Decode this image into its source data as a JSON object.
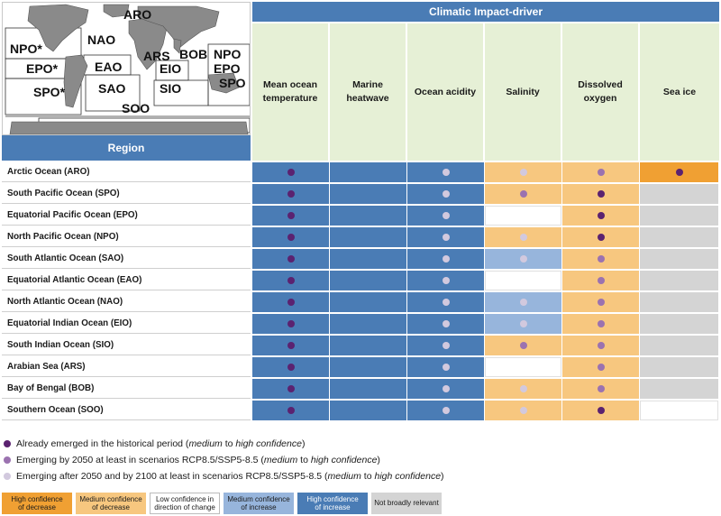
{
  "header": {
    "region_label": "Region",
    "cid_title": "Climatic Impact-driver",
    "columns": [
      "Mean ocean temperature",
      "Marine heatwave",
      "Ocean acidity",
      "Salinity",
      "Dissolved oxygen",
      "Sea ice"
    ]
  },
  "map": {
    "labels": [
      "ARO",
      "NPO*",
      "NAO",
      "EPO*",
      "EAO",
      "ARS",
      "BOB",
      "EIO",
      "NPO",
      "EPO",
      "SPO*",
      "SAO",
      "SIO",
      "SPO",
      "SOO"
    ]
  },
  "colors": {
    "high_decrease": "#f0a033",
    "medium_decrease": "#f7c77f",
    "low_confidence": "#ffffff",
    "medium_increase": "#97b5dc",
    "high_increase": "#4a7cb5",
    "not_relevant": "#d4d4d4",
    "dot_historical": "#5b2270",
    "dot_2050": "#9b72b0",
    "dot_2100": "#d2c9de"
  },
  "rows": [
    {
      "label": "Arctic Ocean (ARO)",
      "cells": [
        [
          "HI",
          "H"
        ],
        [
          "HI",
          ""
        ],
        [
          "HI",
          "L"
        ],
        [
          "MD",
          "L"
        ],
        [
          "MD",
          "M"
        ],
        [
          "HD",
          "H"
        ]
      ]
    },
    {
      "label": "South Pacific Ocean (SPO)",
      "cells": [
        [
          "HI",
          "H"
        ],
        [
          "HI",
          ""
        ],
        [
          "HI",
          "L"
        ],
        [
          "MD",
          "M"
        ],
        [
          "MD",
          "H"
        ],
        [
          "NR",
          ""
        ]
      ]
    },
    {
      "label": "Equatorial Pacific Ocean (EPO)",
      "cells": [
        [
          "HI",
          "H"
        ],
        [
          "HI",
          ""
        ],
        [
          "HI",
          "L"
        ],
        [
          "LC",
          ""
        ],
        [
          "MD",
          "H"
        ],
        [
          "NR",
          ""
        ]
      ]
    },
    {
      "label": "North Pacific Ocean (NPO)",
      "cells": [
        [
          "HI",
          "H"
        ],
        [
          "HI",
          ""
        ],
        [
          "HI",
          "L"
        ],
        [
          "MD",
          "L"
        ],
        [
          "MD",
          "H"
        ],
        [
          "NR",
          ""
        ]
      ]
    },
    {
      "label": "South Atlantic Ocean (SAO)",
      "cells": [
        [
          "HI",
          "H"
        ],
        [
          "HI",
          ""
        ],
        [
          "HI",
          "L"
        ],
        [
          "MI",
          "L"
        ],
        [
          "MD",
          "M"
        ],
        [
          "NR",
          ""
        ]
      ]
    },
    {
      "label": "Equatorial Atlantic Ocean (EAO)",
      "cells": [
        [
          "HI",
          "H"
        ],
        [
          "HI",
          ""
        ],
        [
          "HI",
          "L"
        ],
        [
          "LC",
          ""
        ],
        [
          "MD",
          "M"
        ],
        [
          "NR",
          ""
        ]
      ]
    },
    {
      "label": "North Atlantic Ocean (NAO)",
      "cells": [
        [
          "HI",
          "H"
        ],
        [
          "HI",
          ""
        ],
        [
          "HI",
          "L"
        ],
        [
          "MI",
          "L"
        ],
        [
          "MD",
          "M"
        ],
        [
          "NR",
          ""
        ]
      ]
    },
    {
      "label": "Equatorial Indian Ocean (EIO)",
      "cells": [
        [
          "HI",
          "H"
        ],
        [
          "HI",
          ""
        ],
        [
          "HI",
          "L"
        ],
        [
          "MI",
          "L"
        ],
        [
          "MD",
          "M"
        ],
        [
          "NR",
          ""
        ]
      ]
    },
    {
      "label": "South Indian Ocean (SIO)",
      "cells": [
        [
          "HI",
          "H"
        ],
        [
          "HI",
          ""
        ],
        [
          "HI",
          "L"
        ],
        [
          "MD",
          "M"
        ],
        [
          "MD",
          "M"
        ],
        [
          "NR",
          ""
        ]
      ]
    },
    {
      "label": "Arabian Sea (ARS)",
      "cells": [
        [
          "HI",
          "H"
        ],
        [
          "HI",
          ""
        ],
        [
          "HI",
          "L"
        ],
        [
          "LC",
          ""
        ],
        [
          "MD",
          "M"
        ],
        [
          "NR",
          ""
        ]
      ]
    },
    {
      "label": "Bay of Bengal (BOB)",
      "cells": [
        [
          "HI",
          "H"
        ],
        [
          "HI",
          ""
        ],
        [
          "HI",
          "L"
        ],
        [
          "MD",
          "L"
        ],
        [
          "MD",
          "M"
        ],
        [
          "NR",
          ""
        ]
      ]
    },
    {
      "label": "Southern Ocean (SOO)",
      "cells": [
        [
          "HI",
          "H"
        ],
        [
          "HI",
          ""
        ],
        [
          "HI",
          "L"
        ],
        [
          "MD",
          "L"
        ],
        [
          "MD",
          "H"
        ],
        [
          "LC",
          ""
        ]
      ]
    }
  ],
  "legend": {
    "dot_historical": {
      "pre": "Already emerged in the historical period (",
      "m1": "medium",
      "mid": " to ",
      "m2": "high confidence",
      "post": ")"
    },
    "dot_2050": {
      "pre": "Emerging by 2050 at least in scenarios RCP8.5/SSP5-8.5 (",
      "m1": "medium",
      "mid": " to ",
      "m2": "high confidence",
      "post": ")"
    },
    "dot_2100": {
      "pre": "Emerging after 2050 and by 2100 at least in scenarios RCP8.5/SSP5-8.5 (",
      "m1": "medium",
      "mid": " to ",
      "m2": "high confidence",
      "post": ")"
    },
    "boxes": [
      {
        "key": "HD",
        "l1": "High confidence",
        "l2": "of decrease"
      },
      {
        "key": "MD",
        "l1": "Medium confidence",
        "l2": "of decrease"
      },
      {
        "key": "LC",
        "l1": "Low confidence in",
        "l2": "direction of change"
      },
      {
        "key": "MI",
        "l1": "Medium confidence",
        "l2": "of increase"
      },
      {
        "key": "HI",
        "l1": "High confidence",
        "l2": "of increase"
      },
      {
        "key": "NR",
        "l1": "Not broadly relevant",
        "l2": ""
      }
    ]
  }
}
